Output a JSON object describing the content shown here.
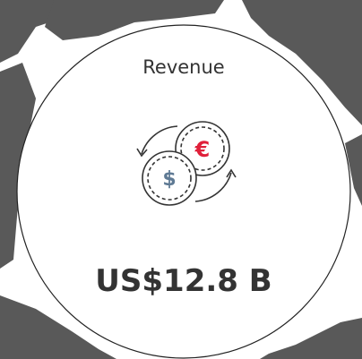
{
  "card": {
    "label": "Revenue",
    "value_text": "US$12.8 B",
    "icon": {
      "symbols": [
        "€",
        "$"
      ]
    }
  }
}
